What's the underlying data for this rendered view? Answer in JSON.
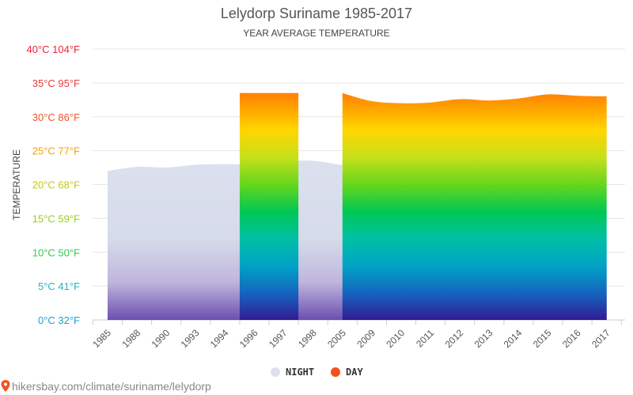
{
  "colors": {
    "night_fill": "#dde1ee",
    "day_legend": "#f4511e",
    "grid": "#e6e6e6",
    "source_pin": "#f4511e",
    "gradient": [
      "#ff1744",
      "#ff5722",
      "#ff9800",
      "#ffd600",
      "#c6e01a",
      "#66d61c",
      "#00c853",
      "#00bfa5",
      "#00a3c4",
      "#1565c0",
      "#311b92"
    ]
  },
  "source": {
    "icon": "map-pin-icon",
    "text": "hikersbay.com/climate/suriname/lelydorp"
  },
  "chart_data": {
    "type": "area",
    "title": "Lelydorp Suriname 1985-2017",
    "subtitle": "YEAR AVERAGE TEMPERATURE",
    "ylabel": "TEMPERATURE",
    "xlabel": "",
    "ylim": [
      0,
      40
    ],
    "grid": true,
    "legend_position": "bottom",
    "yticks": [
      {
        "value": 0,
        "label": "0°C 32°F",
        "color": "#1e9fd6"
      },
      {
        "value": 5,
        "label": "5°C 41°F",
        "color": "#21b8c7"
      },
      {
        "value": 10,
        "label": "10°C 50°F",
        "color": "#37c84a"
      },
      {
        "value": 15,
        "label": "15°C 59°F",
        "color": "#9ccc1c"
      },
      {
        "value": 20,
        "label": "20°C 68°F",
        "color": "#c9c414"
      },
      {
        "value": 25,
        "label": "25°C 77°F",
        "color": "#f2a20b"
      },
      {
        "value": 30,
        "label": "30°C 86°F",
        "color": "#f2542d"
      },
      {
        "value": 35,
        "label": "35°C 95°F",
        "color": "#f03a3a"
      },
      {
        "value": 40,
        "label": "40°C 104°F",
        "color": "#ee2237"
      }
    ],
    "categories": [
      "1985",
      "1988",
      "1990",
      "1993",
      "1994",
      "1996",
      "1997",
      "1998",
      "2005",
      "2009",
      "2010",
      "2011",
      "2012",
      "2013",
      "2014",
      "2015",
      "2016",
      "2017"
    ],
    "series": [
      {
        "name": "NIGHT",
        "values": [
          22.0,
          22.6,
          22.5,
          22.9,
          23.0,
          23.0,
          23.4,
          23.5,
          22.9,
          23.0,
          23.2,
          22.8,
          22.7,
          22.8,
          22.8,
          22.9,
          22.9,
          23.0
        ]
      },
      {
        "name": "DAY",
        "values": [
          null,
          null,
          null,
          null,
          null,
          33.5,
          33.5,
          null,
          33.5,
          32.3,
          32.0,
          32.1,
          32.6,
          32.4,
          32.7,
          33.3,
          33.1,
          33.0
        ]
      }
    ]
  }
}
